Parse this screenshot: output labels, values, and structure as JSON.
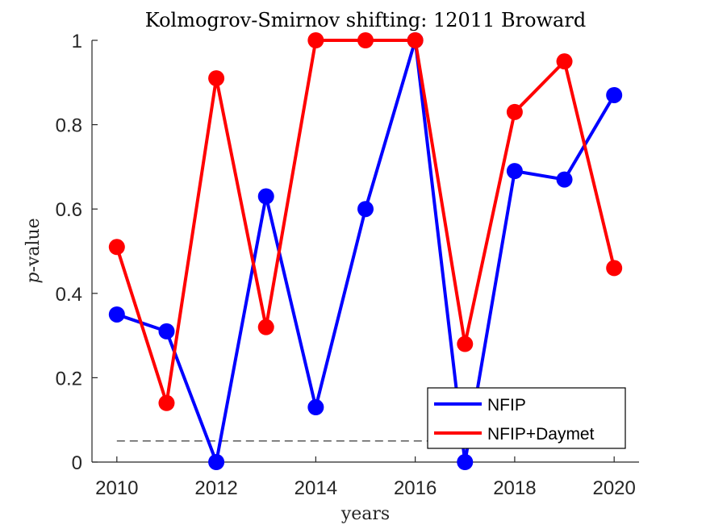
{
  "chart_data": {
    "type": "line",
    "title": "Kolmogrov-Smirnov shifting: 12011 Broward",
    "xlabel": "years",
    "ylabel_italic": "p",
    "ylabel_rest": "-value",
    "xlim": [
      2009.5,
      2020.5
    ],
    "ylim": [
      0,
      1
    ],
    "xticks": [
      2010,
      2012,
      2014,
      2016,
      2018,
      2020
    ],
    "yticks": [
      0,
      0.2,
      0.4,
      0.6,
      0.8,
      1
    ],
    "ytick_labels": [
      "0",
      "0.2",
      "0.4",
      "0.6",
      "0.8",
      "1"
    ],
    "x": [
      2010,
      2011,
      2012,
      2013,
      2014,
      2015,
      2016,
      2017,
      2018,
      2019,
      2020
    ],
    "series": [
      {
        "name": "NFIP",
        "color": "#0000ff",
        "values": [
          0.35,
          0.31,
          0.0,
          0.63,
          0.13,
          0.6,
          1.0,
          0.0,
          0.69,
          0.67,
          0.87
        ]
      },
      {
        "name": "NFIP+Daymet",
        "color": "#ff0000",
        "values": [
          0.51,
          0.14,
          0.91,
          0.32,
          1.0,
          1.0,
          1.0,
          0.28,
          0.83,
          0.95,
          0.46
        ]
      }
    ],
    "threshold": {
      "value": 0.05,
      "style": "dashed",
      "color": "#666666"
    },
    "legend_position": "bottom-right",
    "grid": false
  }
}
